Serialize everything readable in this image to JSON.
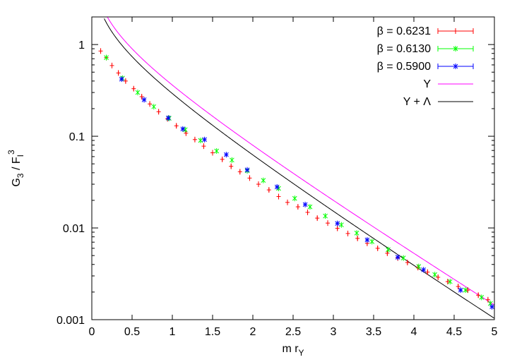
{
  "chart_data": {
    "type": "scatter",
    "xlabel": "m r",
    "xlabel_sub": "Y",
    "ylabel_parts": [
      "G",
      "3",
      " / F",
      "I",
      "3"
    ],
    "xlim": [
      0,
      5
    ],
    "ylim": [
      0.001,
      2
    ],
    "yscale": "log",
    "grid": false,
    "legend_position": "top-right",
    "x_ticks": [
      "0",
      "0.5",
      "1",
      "1.5",
      "2",
      "2.5",
      "3",
      "3.5",
      "4",
      "4.5",
      "5"
    ],
    "y_ticks": [
      "0.001",
      "0.01",
      "0.1",
      "1"
    ],
    "y_tick_values": [
      0.001,
      0.01,
      0.1,
      1
    ],
    "series": [
      {
        "name": "β = 0.6231",
        "color": "#ff0000",
        "marker": "plus",
        "points": [
          [
            0.11,
            0.85
          ],
          [
            0.18,
            0.72
          ],
          [
            0.25,
            0.59
          ],
          [
            0.33,
            0.49
          ],
          [
            0.42,
            0.4
          ],
          [
            0.52,
            0.33
          ],
          [
            0.62,
            0.27
          ],
          [
            0.72,
            0.225
          ],
          [
            0.83,
            0.185
          ],
          [
            0.94,
            0.155
          ],
          [
            1.05,
            0.13
          ],
          [
            1.17,
            0.108
          ],
          [
            1.28,
            0.092
          ],
          [
            1.39,
            0.078
          ],
          [
            1.5,
            0.066
          ],
          [
            1.62,
            0.056
          ],
          [
            1.73,
            0.047
          ],
          [
            1.84,
            0.041
          ],
          [
            1.96,
            0.035
          ],
          [
            2.07,
            0.03
          ],
          [
            2.2,
            0.026
          ],
          [
            2.32,
            0.022
          ],
          [
            2.43,
            0.019
          ],
          [
            2.56,
            0.017
          ],
          [
            2.68,
            0.0148
          ],
          [
            2.8,
            0.0128
          ],
          [
            2.93,
            0.0113
          ],
          [
            3.05,
            0.0099
          ],
          [
            3.18,
            0.0087
          ],
          [
            3.3,
            0.0077
          ],
          [
            3.42,
            0.0068
          ],
          [
            3.55,
            0.006
          ],
          [
            3.67,
            0.0053
          ],
          [
            3.8,
            0.0047
          ],
          [
            3.92,
            0.0042
          ],
          [
            4.05,
            0.0037
          ],
          [
            4.17,
            0.0033
          ],
          [
            4.3,
            0.0029
          ],
          [
            4.42,
            0.0026
          ],
          [
            4.55,
            0.0023
          ],
          [
            4.67,
            0.0021
          ],
          [
            4.8,
            0.00185
          ],
          [
            4.92,
            0.00165
          ]
        ]
      },
      {
        "name": "β = 0.6130",
        "color": "#00ff00",
        "marker": "cross",
        "points": [
          [
            0.18,
            0.72
          ],
          [
            0.38,
            0.43
          ],
          [
            0.57,
            0.3
          ],
          [
            0.77,
            0.21
          ],
          [
            0.96,
            0.157
          ],
          [
            1.16,
            0.118
          ],
          [
            1.35,
            0.09
          ],
          [
            1.55,
            0.069
          ],
          [
            1.74,
            0.055
          ],
          [
            1.93,
            0.042
          ],
          [
            2.13,
            0.033
          ],
          [
            2.32,
            0.027
          ],
          [
            2.52,
            0.021
          ],
          [
            2.71,
            0.017
          ],
          [
            2.9,
            0.0135
          ],
          [
            3.1,
            0.0108
          ],
          [
            3.29,
            0.0088
          ],
          [
            3.48,
            0.0071
          ],
          [
            3.68,
            0.0058
          ],
          [
            3.87,
            0.0047
          ],
          [
            4.06,
            0.0038
          ],
          [
            4.26,
            0.0031
          ],
          [
            4.45,
            0.0026
          ],
          [
            4.64,
            0.0021
          ],
          [
            4.84,
            0.00175
          ],
          [
            4.95,
            0.0015
          ]
        ]
      },
      {
        "name": "β = 0.5900",
        "color": "#0000ff",
        "marker": "star",
        "points": [
          [
            0.37,
            0.42
          ],
          [
            0.65,
            0.25
          ],
          [
            0.95,
            0.158
          ],
          [
            1.13,
            0.12
          ],
          [
            1.4,
            0.092
          ],
          [
            1.67,
            0.063
          ],
          [
            1.93,
            0.043
          ],
          [
            2.3,
            0.028
          ],
          [
            2.65,
            0.018
          ],
          [
            3.05,
            0.0112
          ],
          [
            3.42,
            0.0074
          ],
          [
            3.8,
            0.0048
          ],
          [
            4.12,
            0.0035
          ],
          [
            4.58,
            0.0021
          ],
          [
            4.97,
            0.00138
          ]
        ]
      },
      {
        "name": "Y",
        "color": "#ff00ff",
        "marker": "none",
        "curve": "Y"
      },
      {
        "name": "Y + Λ",
        "color": "#000000",
        "marker": "none",
        "curve": "YL"
      }
    ]
  }
}
